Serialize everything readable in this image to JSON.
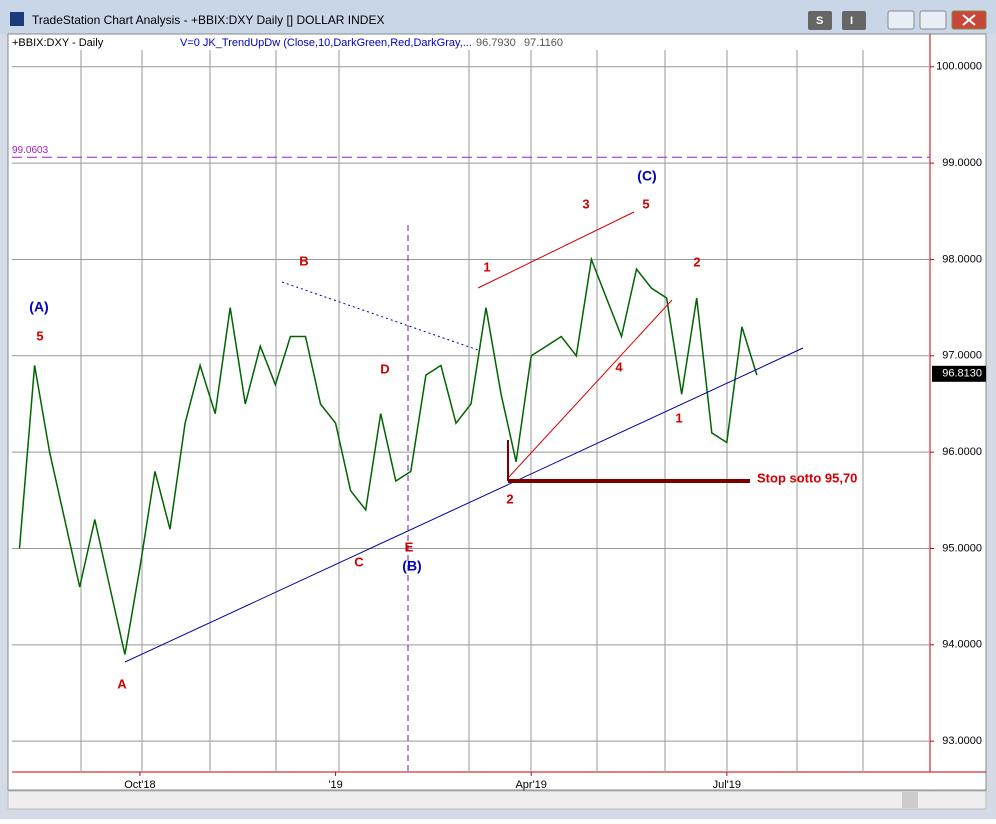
{
  "window": {
    "title": "TradeStation Chart Analysis - +BBIX:DXY Daily [] DOLLAR INDEX",
    "buttons": [
      "S",
      "I"
    ]
  },
  "chart_data": {
    "type": "line",
    "symbol_label": "+BBIX:DXY - Daily",
    "indicator_label": "V=0  JK_TrendUpDw (Close,10,DarkGreen,Red,DarkGray,...",
    "indicator_values": [
      "96.7930",
      "97.1160"
    ],
    "categories": [
      null,
      null,
      null,
      null,
      null,
      null,
      null,
      null,
      "Oct'18",
      null,
      null,
      null,
      null,
      null,
      null,
      null,
      null,
      null,
      null,
      null,
      null,
      "'19",
      null,
      null,
      null,
      null,
      null,
      null,
      null,
      null,
      null,
      null,
      null,
      null,
      "Apr'19",
      null,
      null,
      null,
      null,
      null,
      null,
      null,
      null,
      null,
      null,
      null,
      null,
      "Jul'19",
      null,
      null,
      null,
      null,
      null,
      null,
      null,
      null,
      null,
      null,
      null,
      null,
      null
    ],
    "series": [
      {
        "name": "+BBIX:DXY",
        "color": "#006400",
        "values": [
          95.0,
          96.9,
          96.0,
          95.3,
          94.6,
          95.3,
          94.6,
          93.9,
          94.8,
          95.8,
          95.2,
          96.3,
          96.9,
          96.4,
          97.5,
          96.5,
          97.1,
          96.7,
          97.2,
          97.2,
          96.5,
          96.3,
          95.6,
          95.4,
          96.4,
          95.7,
          95.8,
          96.8,
          96.9,
          96.3,
          96.5,
          97.5,
          96.6,
          95.9,
          97.0,
          97.1,
          97.2,
          97.0,
          98.0,
          97.6,
          97.2,
          97.9,
          97.7,
          97.6,
          96.6,
          97.6,
          96.2,
          96.1,
          97.3,
          96.8,
          null,
          null,
          null,
          null,
          null,
          null,
          null,
          null,
          null,
          null,
          null
        ]
      }
    ],
    "ylim": [
      92.68,
      100.34
    ],
    "yticks": [
      {
        "value": 93,
        "label": "93.0000"
      },
      {
        "value": 94,
        "label": "94.0000"
      },
      {
        "value": 95,
        "label": "95.0000"
      },
      {
        "value": 96,
        "label": "96.0000"
      },
      {
        "value": 97,
        "label": "97.0000"
      },
      {
        "value": 98,
        "label": "98.0000"
      },
      {
        "value": 99,
        "label": "99.0000"
      },
      {
        "value": 100,
        "label": "100.0000"
      }
    ],
    "grid": true,
    "reference_line": {
      "value": 99.0603,
      "label": "99.0603",
      "color": "#a020c0"
    },
    "last_price": {
      "value": 96.813,
      "label": "96.8130"
    },
    "annotations": [
      {
        "text": "(A)",
        "color": "#0000c0"
      },
      {
        "text": "5",
        "color": "#d40000"
      },
      {
        "text": "A",
        "color": "#d40000"
      },
      {
        "text": "B",
        "color": "#d40000"
      },
      {
        "text": "C",
        "color": "#d40000"
      },
      {
        "text": "D",
        "color": "#d40000"
      },
      {
        "text": "E",
        "color": "#d40000"
      },
      {
        "text": "(B)",
        "color": "#0000c0"
      },
      {
        "text": "1",
        "color": "#d40000"
      },
      {
        "text": "2",
        "color": "#d40000"
      },
      {
        "text": "3",
        "color": "#d40000"
      },
      {
        "text": "4",
        "color": "#d40000"
      },
      {
        "text": "5",
        "color": "#d40000"
      },
      {
        "text": "(C)",
        "color": "#0000c0"
      },
      {
        "text": "1",
        "color": "#d40000"
      },
      {
        "text": "2",
        "color": "#d40000"
      },
      {
        "text": "Stop sotto 95,70",
        "color": "#d40000"
      }
    ]
  }
}
